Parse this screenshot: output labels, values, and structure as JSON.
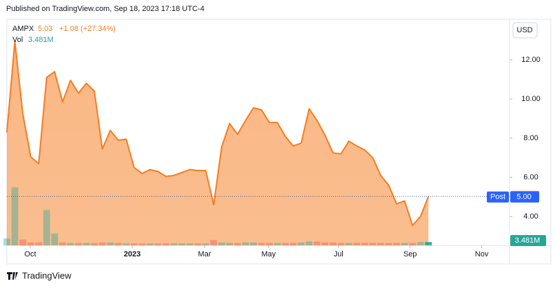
{
  "header": "Published on TradingView.com, Sep 18, 2023 17:18 UTC-4",
  "footer": "TradingView",
  "chart_data": {
    "type": "area",
    "symbol": "AMPX",
    "last_price": 5.03,
    "last_label": "5.03",
    "change": "+1.08 (+27.34%)",
    "currency": "USD",
    "post_label": "Post",
    "post_price": {
      "value": 5.0,
      "label": "5.00"
    },
    "volume_label": "Vol",
    "last_volume": {
      "value": 3.481,
      "label": "3.481M"
    },
    "x": [
      0,
      1,
      2,
      3,
      4,
      5,
      6,
      7,
      8,
      9,
      10,
      11,
      12,
      13,
      14,
      15,
      16,
      17,
      18,
      19,
      20,
      21,
      22,
      23,
      24,
      25,
      26,
      27,
      28,
      29,
      30,
      31,
      32,
      33,
      34,
      35,
      36,
      37,
      38,
      39,
      40,
      41,
      42,
      43,
      44,
      45,
      46,
      47,
      48,
      49,
      50,
      51,
      52,
      53
    ],
    "series": [
      {
        "name": "AMPX",
        "color": "#f57c1f",
        "values": [
          8.3,
          12.95,
          9.25,
          7.05,
          6.7,
          11.1,
          11.4,
          9.85,
          10.95,
          10.3,
          10.8,
          10.4,
          7.45,
          8.4,
          7.9,
          7.95,
          6.5,
          6.2,
          6.4,
          6.3,
          6.05,
          6.1,
          6.25,
          6.4,
          6.35,
          6.35,
          4.6,
          7.55,
          8.75,
          8.2,
          8.9,
          9.55,
          9.45,
          8.8,
          8.8,
          8.1,
          7.6,
          7.75,
          9.5,
          8.9,
          8.15,
          7.25,
          7.2,
          7.85,
          7.6,
          7.4,
          7.0,
          6.1,
          5.6,
          4.65,
          4.8,
          3.55,
          4.0,
          5.03
        ]
      },
      {
        "name": "Vol",
        "color": "#26a69a",
        "axis": "y2",
        "values": [
          7,
          59,
          6,
          3,
          3,
          36,
          12,
          3,
          2.5,
          2.5,
          2.5,
          2.5,
          3,
          3,
          2.5,
          2,
          2,
          2,
          2,
          2,
          2,
          2,
          2,
          2,
          2,
          2,
          5.5,
          3,
          2.5,
          2.5,
          3,
          3,
          2.5,
          2.5,
          2.5,
          2.5,
          2.5,
          3,
          4,
          4,
          3,
          3,
          2.5,
          2.5,
          2.5,
          2.5,
          2.5,
          2.5,
          2.5,
          2.5,
          2.5,
          2.5,
          3.5,
          3.481
        ]
      }
    ],
    "xlim": [
      0,
      63.2
    ],
    "xticks": [
      {
        "value": 2.94,
        "label": "Oct"
      },
      {
        "value": 15.76,
        "label": "2023"
      },
      {
        "value": 24.85,
        "label": "Mar"
      },
      {
        "value": 32.9,
        "label": "May"
      },
      {
        "value": 41.7,
        "label": "Jul"
      },
      {
        "value": 50.7,
        "label": "Sep"
      },
      {
        "value": 59.7,
        "label": "Nov"
      }
    ],
    "ylim": [
      2.53,
      14.07
    ],
    "yticks": [
      {
        "value": 4,
        "label": "4.00"
      },
      {
        "value": 6,
        "label": "6.00"
      },
      {
        "value": 8,
        "label": "8.00"
      },
      {
        "value": 10,
        "label": "10.00"
      },
      {
        "value": 12,
        "label": "12.00"
      }
    ],
    "y2lim": [
      0,
      230
    ]
  }
}
